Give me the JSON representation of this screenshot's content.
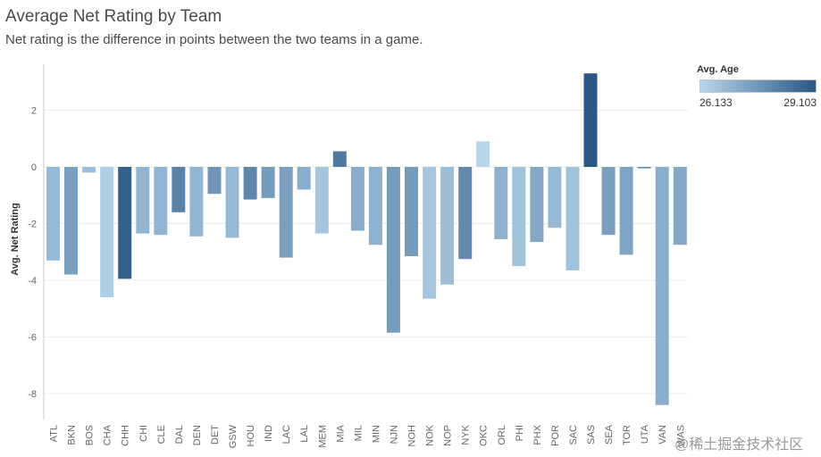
{
  "colors": {
    "low": "#b7d6ec",
    "high": "#2a5783",
    "grid": "#ececec",
    "axis": "#666666"
  },
  "legend": {
    "title": "Avg. Age",
    "min_label": "26.133",
    "max_label": "29.103"
  },
  "watermark": "@稀土掘金技术社区",
  "chart_data": {
    "type": "bar",
    "title": "Average Net Rating by Team",
    "subtitle": "Net rating is the difference in points between the two teams in a game.",
    "xlabel": "",
    "ylabel": "Avg. Net Rating",
    "ylim": [
      -9,
      3.4
    ],
    "yticks": [
      2,
      0,
      -2,
      -4,
      -6,
      -8
    ],
    "grid": true,
    "legend_position": "top-right",
    "categories": [
      "ATL",
      "BKN",
      "BOS",
      "CHA",
      "CHH",
      "CHI",
      "CLE",
      "DAL",
      "DEN",
      "DET",
      "GSW",
      "HOU",
      "IND",
      "LAC",
      "LAL",
      "MEM",
      "MIA",
      "MIL",
      "MIN",
      "NJN",
      "NOH",
      "NOK",
      "NOP",
      "NYK",
      "OKC",
      "ORL",
      "PHI",
      "PHX",
      "POR",
      "SAC",
      "SAS",
      "SEA",
      "TOR",
      "UTA",
      "VAN",
      "WAS"
    ],
    "values": [
      -3.3,
      -3.8,
      -0.2,
      -4.6,
      -3.95,
      -2.35,
      -2.4,
      -1.6,
      -2.45,
      -0.95,
      -2.5,
      -1.15,
      -1.1,
      -3.2,
      -0.8,
      -2.35,
      0.55,
      -2.25,
      -2.75,
      -5.85,
      -3.15,
      -4.65,
      -4.15,
      -3.25,
      0.9,
      -2.55,
      -3.5,
      -2.65,
      -2.15,
      -3.65,
      3.3,
      -2.4,
      -3.1,
      -0.05,
      -8.4,
      -2.75
    ],
    "avg_age": [
      26.8,
      27.4,
      26.7,
      26.3,
      28.9,
      26.9,
      26.9,
      28.1,
      26.9,
      27.6,
      26.8,
      28.0,
      27.5,
      27.4,
      27.1,
      26.5,
      28.3,
      27.1,
      27.0,
      27.5,
      27.5,
      26.5,
      26.7,
      27.9,
      26.133,
      27.0,
      26.6,
      27.2,
      26.8,
      26.6,
      29.103,
      27.4,
      27.3,
      27.9,
      27.1,
      27.2
    ],
    "series_meta": {
      "color_by": "Avg. Age",
      "color_range": [
        26.133,
        29.103
      ]
    }
  }
}
